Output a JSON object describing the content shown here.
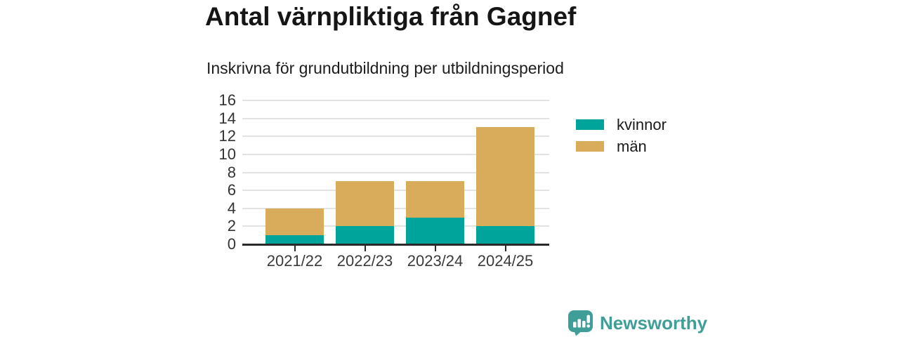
{
  "title": "Antal värnpliktiga från Gagnef",
  "subtitle": "Inskrivna för grundutbildning per utbildningsperiod",
  "chart_data": {
    "type": "bar",
    "stacked": true,
    "title": "Antal värnpliktiga från Gagnef",
    "subtitle": "Inskrivna för grundutbildning per utbildningsperiod",
    "categories": [
      "2021/22",
      "2022/23",
      "2023/24",
      "2024/25"
    ],
    "series": [
      {
        "name": "kvinnor",
        "color": "#00a49a",
        "values": [
          1,
          2,
          3,
          2
        ]
      },
      {
        "name": "män",
        "color": "#d9ac5c",
        "values": [
          3,
          5,
          4,
          11
        ]
      }
    ],
    "totals": [
      4,
      7,
      7,
      13
    ],
    "xlabel": "",
    "ylabel": "",
    "ylim": [
      0,
      16
    ],
    "ytick_step": 2,
    "yticks": [
      0,
      2,
      4,
      6,
      8,
      10,
      12,
      14,
      16
    ],
    "grid": true,
    "gridline_color": "#e2e2e2",
    "axis_color": "#2a2a2a",
    "tick_label_color": "#3a3a3a",
    "legend_position": "right"
  },
  "legend": {
    "items": [
      {
        "label": "kvinnor",
        "color": "#00a49a"
      },
      {
        "label": "män",
        "color": "#d9ac5c"
      }
    ]
  },
  "branding": {
    "logo_text": "Newsworthy",
    "logo_color": "#3f9e97",
    "logo_icon": "bar-chart-speech-bubble-icon"
  }
}
